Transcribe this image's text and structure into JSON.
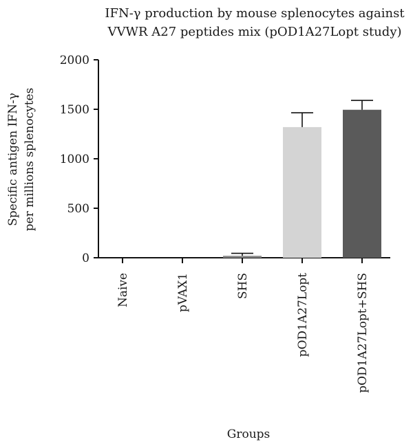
{
  "chart_data": {
    "type": "bar",
    "title_lines": [
      "IFN-γ production by mouse splenocytes against",
      "VVWR A27 peptides mix (pOD1A27Lopt study)"
    ],
    "ylabel_lines": [
      "Specific antigen IFN-γ",
      "per millions splenocytes"
    ],
    "xlabel": "Groups",
    "categories": [
      "Naive",
      "pVAX1",
      "SHS",
      "pOD1A27Lopt",
      "pOD1A27Lopt+SHS"
    ],
    "values": [
      0,
      0,
      20,
      1320,
      1495
    ],
    "errors": [
      0,
      0,
      25,
      145,
      95
    ],
    "bar_colors": [
      "#d4d4d4",
      "#8c8c8c",
      "#8c8c8c",
      "#d4d4d4",
      "#5a5a5a"
    ],
    "ylim": [
      0,
      2000
    ],
    "yticks": [
      0,
      500,
      1000,
      1500,
      2000
    ],
    "ytick_labels": [
      "0",
      "500",
      "1000",
      "1500",
      "2000"
    ],
    "grid": false,
    "legend": "none"
  }
}
